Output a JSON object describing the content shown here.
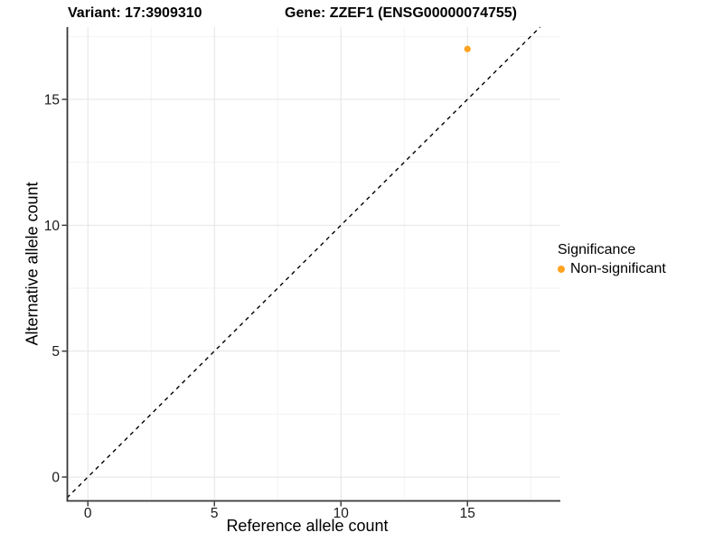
{
  "chart_data": {
    "type": "scatter",
    "title_left": "Variant: 17:3909310",
    "title_right": "Gene: ZZEF1 (ENSG00000074755)",
    "xlabel": "Reference allele count",
    "ylabel": "Alternative allele count",
    "x_ticks": [
      0,
      5,
      10,
      15
    ],
    "y_ticks": [
      0,
      5,
      10,
      15
    ],
    "minor_tick_step": 2.5,
    "xlim": [
      -0.83,
      18.67
    ],
    "ylim": [
      -0.93,
      17.87
    ],
    "points": [
      {
        "x": 15,
        "y": 17,
        "series": "Non-significant"
      }
    ],
    "reference_line": {
      "type": "identity",
      "slope": 1,
      "intercept": 0,
      "style": "dashed"
    },
    "grid": true,
    "legend_position": "right",
    "legend": {
      "title": "Significance",
      "items": [
        {
          "label": "Non-significant",
          "color": "#FFA320"
        }
      ]
    },
    "colors": {
      "point": "#FFA320",
      "grid_major": "#E4E4E4",
      "grid_minor": "#F2F2F2",
      "axis_line": "#383838",
      "tick_mark": "#333333",
      "reference_line": "#000000",
      "background": "#FFFFFF"
    }
  }
}
